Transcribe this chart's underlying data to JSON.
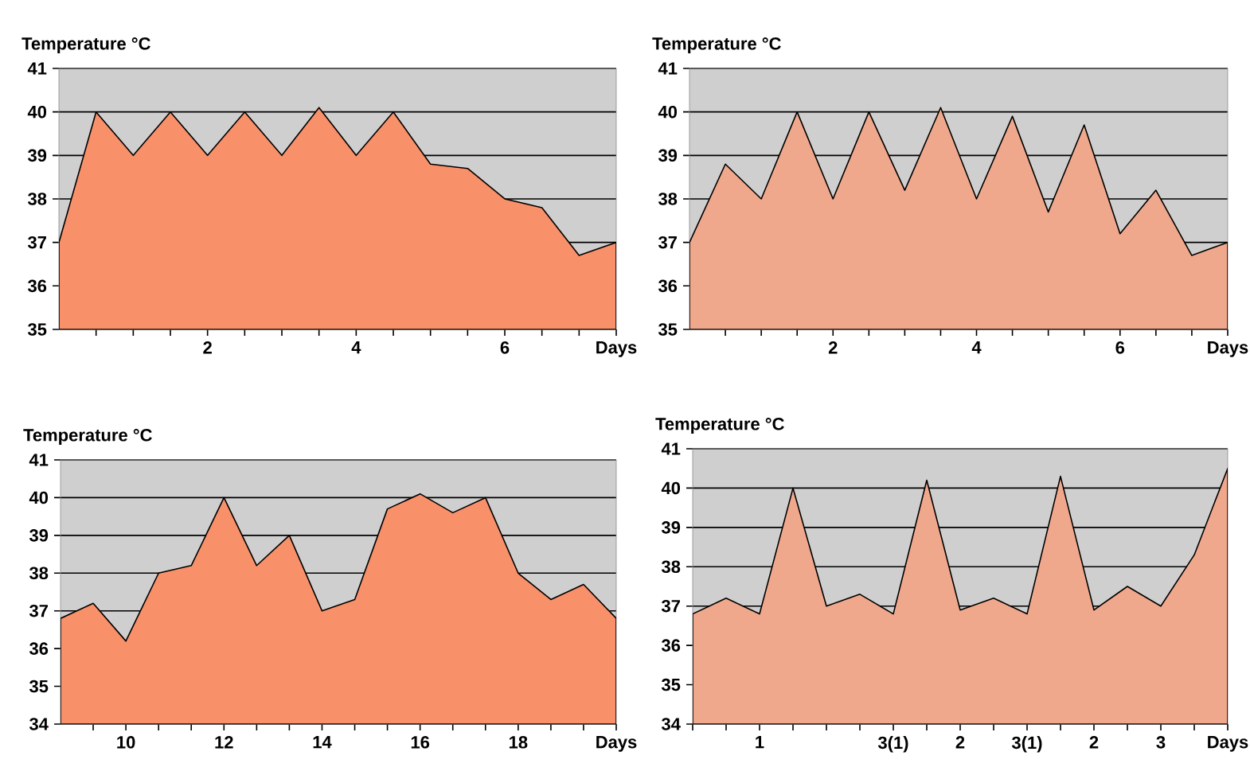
{
  "chart_data": [
    {
      "type": "area",
      "ylabel": "Temperature °C",
      "color": "#f8906a",
      "grid": "y",
      "x": [
        0,
        0.5,
        1,
        1.5,
        2,
        2.5,
        3,
        3.5,
        4,
        4.5,
        5,
        5.5,
        6,
        6.5,
        7,
        7.5
      ],
      "values": [
        37,
        40,
        39,
        40,
        39,
        40,
        39,
        40.1,
        39,
        40,
        38.8,
        38.7,
        38,
        37.8,
        36.7,
        37
      ],
      "xlim": [
        0,
        7.5
      ],
      "ylim": [
        35,
        41
      ],
      "xticks": [
        {
          "value": 0.5,
          "label": null
        },
        {
          "value": 1,
          "label": null
        },
        {
          "value": 1.5,
          "label": null
        },
        2,
        {
          "value": 2.5,
          "label": null
        },
        {
          "value": 3,
          "label": null
        },
        {
          "value": 3.5,
          "label": null
        },
        4,
        {
          "value": 4.5,
          "label": null
        },
        {
          "value": 5,
          "label": null
        },
        {
          "value": 5.5,
          "label": null
        },
        6,
        {
          "value": 6.5,
          "label": null
        },
        {
          "value": 7,
          "label": null
        },
        {
          "value": 7.5,
          "label": "Days"
        }
      ],
      "yticks": [
        35,
        36,
        37,
        38,
        39,
        40,
        41
      ]
    },
    {
      "type": "area",
      "ylabel": "Temperature °C",
      "color": "#f0a88c",
      "grid": "y",
      "x": [
        0,
        0.5,
        1,
        1.5,
        2,
        2.5,
        3,
        3.5,
        4,
        4.5,
        5,
        5.5,
        6,
        6.5,
        7,
        7.5
      ],
      "values": [
        37,
        38.8,
        38,
        40,
        38,
        40,
        38.2,
        40.1,
        38,
        39.9,
        37.7,
        39.7,
        37.2,
        38.2,
        36.7,
        37
      ],
      "xlim": [
        0,
        7.5
      ],
      "ylim": [
        35,
        41
      ],
      "xticks": [
        {
          "value": 0.5,
          "label": null
        },
        {
          "value": 1,
          "label": null
        },
        {
          "value": 1.5,
          "label": null
        },
        2,
        {
          "value": 2.5,
          "label": null
        },
        {
          "value": 3,
          "label": null
        },
        {
          "value": 3.5,
          "label": null
        },
        4,
        {
          "value": 4.5,
          "label": null
        },
        {
          "value": 5,
          "label": null
        },
        {
          "value": 5.5,
          "label": null
        },
        6,
        {
          "value": 6.5,
          "label": null
        },
        {
          "value": 7,
          "label": null
        },
        {
          "value": 7.5,
          "label": "Days"
        }
      ],
      "yticks": [
        35,
        36,
        37,
        38,
        39,
        40,
        41
      ]
    },
    {
      "type": "area",
      "ylabel": "Temperature °C",
      "color": "#f8906a",
      "grid": "y",
      "x": [
        8.667,
        9.333,
        10,
        10.667,
        11.333,
        12,
        12.667,
        13.333,
        14,
        14.667,
        15.333,
        16,
        16.667,
        17.333,
        18,
        18.667,
        19.333,
        20
      ],
      "values": [
        36.8,
        37.2,
        36.2,
        38,
        38.2,
        40,
        38.2,
        39,
        37,
        37.3,
        39.7,
        40.1,
        39.6,
        40,
        38,
        37.3,
        37.7,
        36.8
      ],
      "xlim": [
        8.667,
        20
      ],
      "ylim": [
        34,
        41
      ],
      "xticks": [
        {
          "value": 9.333,
          "label": null
        },
        10,
        {
          "value": 10.667,
          "label": null
        },
        {
          "value": 11.333,
          "label": null
        },
        12,
        {
          "value": 12.667,
          "label": null
        },
        {
          "value": 13.333,
          "label": null
        },
        14,
        {
          "value": 14.667,
          "label": null
        },
        {
          "value": 15.333,
          "label": null
        },
        16,
        {
          "value": 16.667,
          "label": null
        },
        {
          "value": 17.333,
          "label": null
        },
        18,
        {
          "value": 18.667,
          "label": null
        },
        {
          "value": 19.333,
          "label": null
        },
        {
          "value": 20,
          "label": "Days"
        }
      ],
      "yticks": [
        34,
        35,
        36,
        37,
        38,
        39,
        40,
        41
      ]
    },
    {
      "type": "area",
      "ylabel": "Temperature °C",
      "color": "#f0a88c",
      "grid": "y",
      "categories": [
        null,
        null,
        "1",
        null,
        null,
        null,
        "3(1)",
        null,
        "2",
        null,
        "3(1)",
        null,
        "2",
        null,
        "3",
        null,
        "Days"
      ],
      "values": [
        36.8,
        37.2,
        36.8,
        40,
        37,
        37.3,
        36.8,
        40.2,
        36.9,
        37.2,
        36.8,
        40.3,
        36.9,
        37.5,
        37,
        38.3,
        40.5
      ],
      "ylim": [
        34,
        41
      ],
      "yticks": [
        34,
        35,
        36,
        37,
        38,
        39,
        40,
        41
      ]
    }
  ]
}
